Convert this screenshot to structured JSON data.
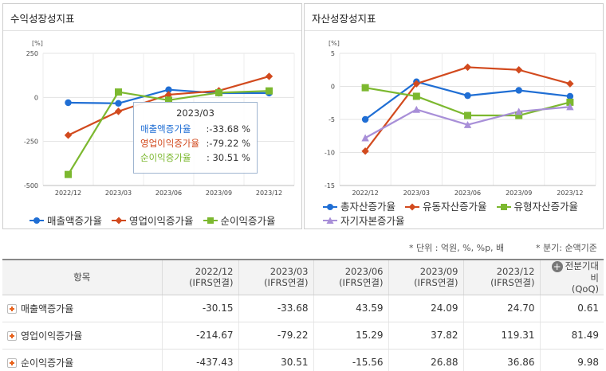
{
  "left_panel": {
    "title": "수익성장성지표",
    "unit": "[%]",
    "legend": [
      "매출액증가율",
      "영업이익증가율",
      "순이익증가율"
    ],
    "tooltip": {
      "title": "2023/03",
      "rows": [
        {
          "label": "매출액증가율",
          "value": ":-33.68 %",
          "color": "#1f6ed4"
        },
        {
          "label": "영업이익증가율",
          "value": ":-79.22 %",
          "color": "#d24a1e"
        },
        {
          "label": "순이익증가율",
          "value": ": 30.51 %",
          "color": "#7cb82f"
        }
      ]
    }
  },
  "right_panel": {
    "title": "자산성장성지표",
    "unit": "[%]",
    "legend": [
      "총자산증가율",
      "유동자산증가율",
      "유형자산증가율",
      "자기자본증가율"
    ]
  },
  "chart_data": [
    {
      "type": "line",
      "title": "수익성장성지표",
      "ylabel": "[%]",
      "categories": [
        "2022/12",
        "2023/03",
        "2023/06",
        "2023/09",
        "2023/12"
      ],
      "ylim": [
        -500,
        250
      ],
      "yticks": [
        250,
        0,
        -250,
        -500
      ],
      "grid": true,
      "legend_position": "bottom",
      "series": [
        {
          "name": "매출액증가율",
          "values": [
            -30.15,
            -33.68,
            43.59,
            24.09,
            24.7
          ],
          "color": "#1f6ed4",
          "marker": "circle"
        },
        {
          "name": "영업이익증가율",
          "values": [
            -214.67,
            -79.22,
            15.29,
            37.82,
            119.31
          ],
          "color": "#d24a1e",
          "marker": "diamond"
        },
        {
          "name": "순이익증가율",
          "values": [
            -437.43,
            30.51,
            -15.56,
            26.88,
            36.86
          ],
          "color": "#7cb82f",
          "marker": "square"
        }
      ]
    },
    {
      "type": "line",
      "title": "자산성장성지표",
      "ylabel": "[%]",
      "categories": [
        "2022/12",
        "2023/03",
        "2023/06",
        "2023/09",
        "2023/12"
      ],
      "ylim": [
        -15,
        5
      ],
      "yticks": [
        5,
        0,
        -5,
        -10,
        -15
      ],
      "grid": true,
      "legend_position": "bottom",
      "series": [
        {
          "name": "총자산증가율",
          "values": [
            -5.0,
            0.7,
            -1.4,
            -0.6,
            -1.5
          ],
          "color": "#1f6ed4",
          "marker": "circle"
        },
        {
          "name": "유동자산증가율",
          "values": [
            -9.8,
            0.4,
            2.9,
            2.5,
            0.4
          ],
          "color": "#d24a1e",
          "marker": "diamond"
        },
        {
          "name": "유형자산증가율",
          "values": [
            -0.2,
            -1.5,
            -4.4,
            -4.4,
            -2.4
          ],
          "color": "#7cb82f",
          "marker": "square"
        },
        {
          "name": "자기자본증가율",
          "values": [
            -7.8,
            -3.5,
            -5.8,
            -3.8,
            -3.1
          ],
          "color": "#a88fd8",
          "marker": "triangle"
        }
      ]
    }
  ],
  "meta": {
    "units": "* 단위 : 억원, %, %p, 배",
    "period": "* 분기: 순액기준"
  },
  "table": {
    "headers": [
      {
        "top": "항목",
        "bottom": ""
      },
      {
        "top": "2022/12",
        "bottom": "(IFRS연결)"
      },
      {
        "top": "2023/03",
        "bottom": "(IFRS연결)"
      },
      {
        "top": "2023/06",
        "bottom": "(IFRS연결)"
      },
      {
        "top": "2023/09",
        "bottom": "(IFRS연결)"
      },
      {
        "top": "2023/12",
        "bottom": "(IFRS연결)"
      },
      {
        "top": "전분기대비",
        "bottom": "(QoQ)"
      }
    ],
    "rows": [
      {
        "label": "매출액증가율",
        "values": [
          "-30.15",
          "-33.68",
          "43.59",
          "24.09",
          "24.70",
          "0.61"
        ]
      },
      {
        "label": "영업이익증가율",
        "values": [
          "-214.67",
          "-79.22",
          "15.29",
          "37.82",
          "119.31",
          "81.49"
        ]
      },
      {
        "label": "순이익증가율",
        "values": [
          "-437.43",
          "30.51",
          "-15.56",
          "26.88",
          "36.86",
          "9.98"
        ]
      }
    ]
  }
}
